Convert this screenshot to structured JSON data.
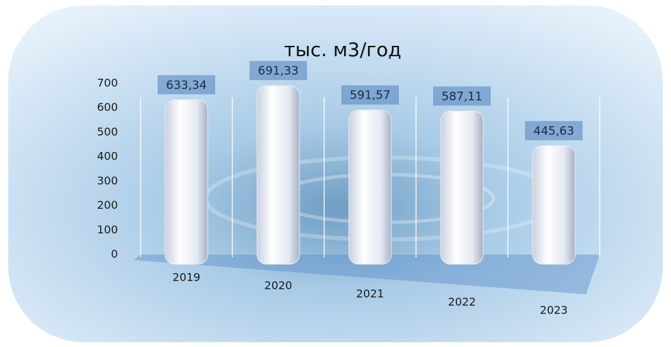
{
  "chart_data": {
    "type": "bar",
    "title": "тыс. м3/год",
    "categories": [
      "2019",
      "2020",
      "2021",
      "2022",
      "2023"
    ],
    "values": [
      633.34,
      691.33,
      591.57,
      587.11,
      445.63
    ],
    "value_labels": [
      "633,34",
      "691,33",
      "591,57",
      "587,11",
      "445,63"
    ],
    "color": "#e9edf6",
    "ylim": [
      0,
      700
    ],
    "yticks": [
      0,
      100,
      200,
      300,
      400,
      500,
      600,
      700
    ]
  }
}
